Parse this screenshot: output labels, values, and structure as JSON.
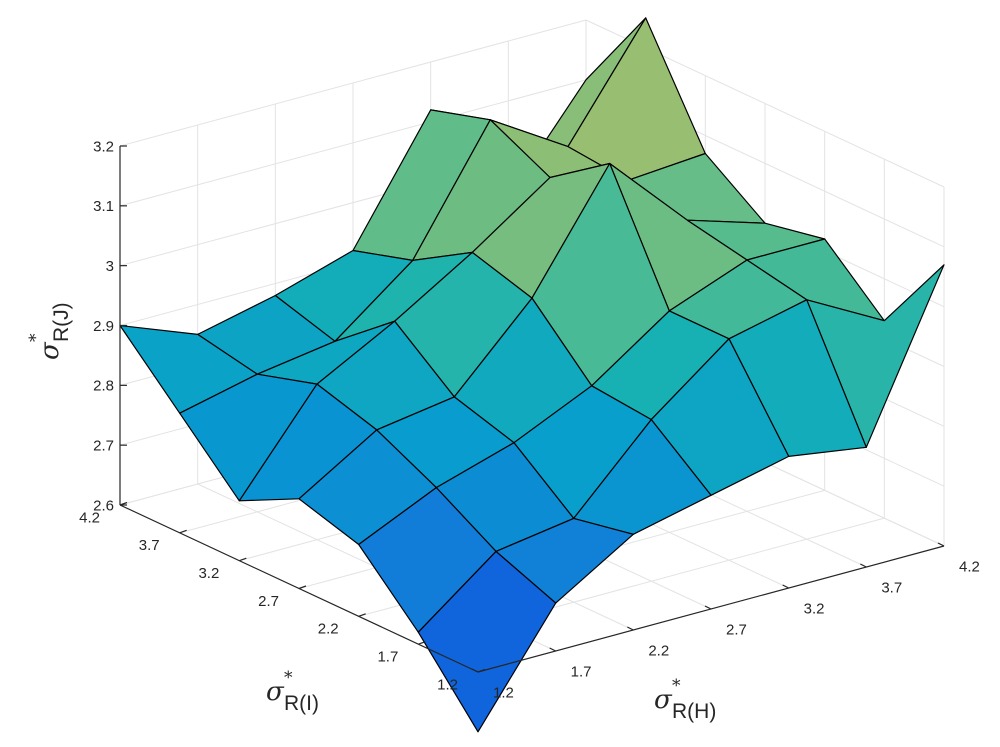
{
  "chart_data": {
    "type": "surface",
    "title": "",
    "xlabel": {
      "symbol": "σ",
      "star": "*",
      "sub": "R(H)"
    },
    "ylabel": {
      "symbol": "σ",
      "star": "*",
      "sub": "R(I)"
    },
    "zlabel": {
      "symbol": "σ",
      "star": "*",
      "sub": "R(J)"
    },
    "xlim": [
      1.2,
      4.2
    ],
    "ylim": [
      1.2,
      4.2
    ],
    "zlim": [
      2.6,
      3.2
    ],
    "x_ticks": [
      "1.2",
      "1.7",
      "2.2",
      "2.7",
      "3.2",
      "3.7",
      "4.2"
    ],
    "y_ticks": [
      "1.2",
      "1.7",
      "2.2",
      "2.7",
      "3.2",
      "3.7",
      "4.2"
    ],
    "z_ticks": [
      "2.6",
      "2.7",
      "2.8",
      "2.9",
      "3",
      "3.1",
      "3.2"
    ],
    "x": [
      1.2,
      1.7,
      2.2,
      2.7,
      3.2,
      3.7,
      4.2
    ],
    "y": [
      1.2,
      1.7,
      2.2,
      2.7,
      3.2,
      3.7,
      4.2
    ],
    "z": [
      [
        2.5,
        2.68,
        2.76,
        2.79,
        2.82,
        2.8,
        3.07
      ],
      [
        2.62,
        2.72,
        2.74,
        2.87,
        2.97,
        3.0,
        2.93
      ],
      [
        2.72,
        2.78,
        2.82,
        2.88,
        2.97,
        3.02,
        3.02
      ],
      [
        2.75,
        2.83,
        2.85,
        2.98,
        3.17,
        3.04,
        3.0
      ],
      [
        2.7,
        2.86,
        2.93,
        3.01,
        3.1,
        3.06,
        3.07
      ],
      [
        2.8,
        2.83,
        2.85,
        2.95,
        3.15,
        3.07,
        3.25
      ],
      [
        2.9,
        2.85,
        2.88,
        2.92,
        3.12,
        2.94,
        3.1
      ]
    ],
    "grid": true,
    "colormap": "parula"
  }
}
